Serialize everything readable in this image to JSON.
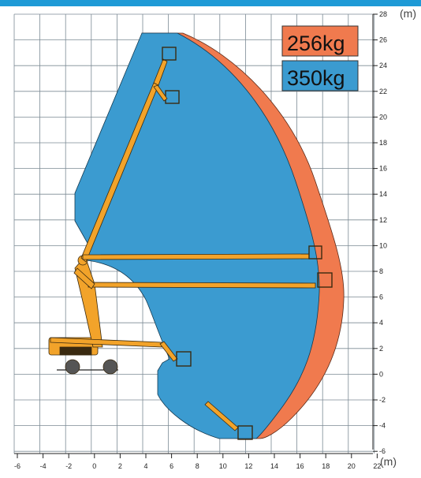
{
  "colors": {
    "top_bar": "#1e9ad6",
    "envelope_256": "#f07a4e",
    "envelope_350": "#3b9bd0",
    "boom": "#f2a32a",
    "grid": "#7c8a94"
  },
  "legend": [
    {
      "label": "256kg",
      "color": "#f07a4e"
    },
    {
      "label": "350kg",
      "color": "#3b9bd0"
    }
  ],
  "axes": {
    "x_unit": "(m)",
    "y_unit": "(m)",
    "x_ticks": [
      "-6",
      "-4",
      "-2",
      "0",
      "2",
      "4",
      "6",
      "8",
      "10",
      "12",
      "14",
      "16",
      "18",
      "20",
      "22"
    ],
    "y_ticks": [
      "28",
      "26",
      "24",
      "22",
      "20",
      "18",
      "16",
      "14",
      "12",
      "10",
      "8",
      "6",
      "4",
      "2",
      "0",
      "-2",
      "-4",
      "-6"
    ]
  }
}
